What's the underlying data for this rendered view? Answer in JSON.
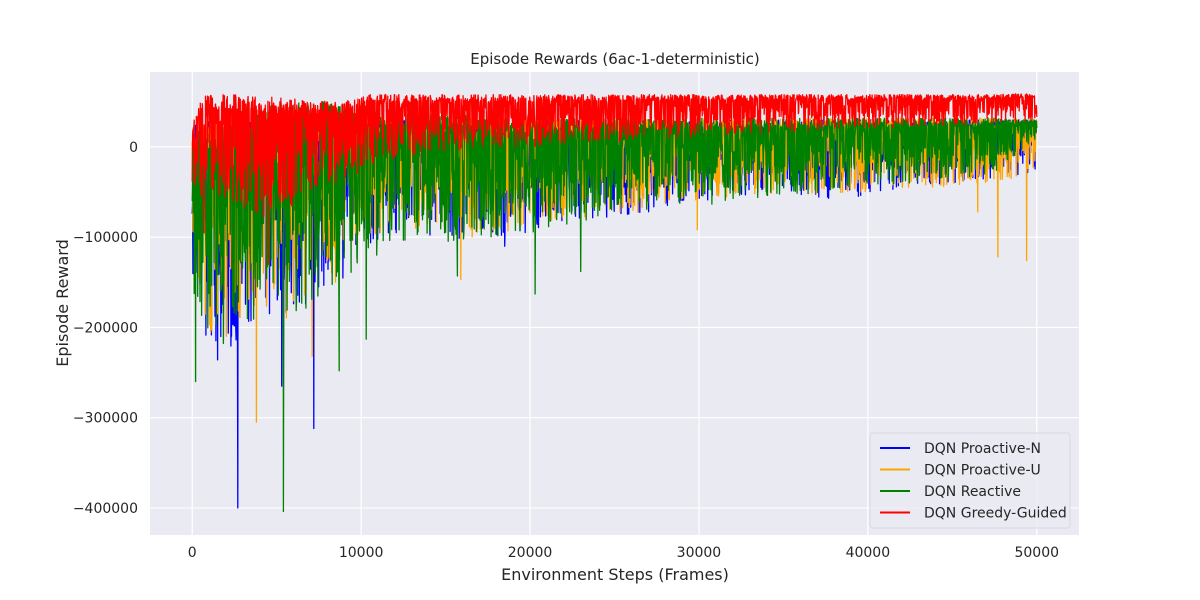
{
  "chart_data": {
    "type": "line",
    "title": "Episode Rewards (6ac-1-deterministic)",
    "xlabel": "Environment Steps (Frames)",
    "ylabel": "Episode Reward",
    "xlim": [
      -2500,
      52500
    ],
    "ylim": [
      -430000,
      83000
    ],
    "x_ticks": [
      0,
      10000,
      20000,
      30000,
      40000,
      50000
    ],
    "y_ticks": [
      0,
      -100000,
      -200000,
      -300000,
      -400000
    ],
    "x_tick_labels": [
      "0",
      "10000",
      "20000",
      "30000",
      "40000",
      "50000"
    ],
    "y_tick_labels": [
      "0",
      "−100000",
      "−200000",
      "−300000",
      "−400000"
    ],
    "grid": true,
    "legend_position": "lower-right",
    "series": [
      {
        "name": "DQN Proactive-N",
        "color": "#0000ff",
        "envelope": {
          "x": [
            0,
            1000,
            2500,
            4000,
            5500,
            7000,
            8500,
            10000,
            12500,
            15000,
            17500,
            20000,
            22500,
            25000,
            27500,
            30000,
            32500,
            35000,
            37500,
            40000,
            42500,
            45000,
            47500,
            50000
          ],
          "upper": [
            25000,
            30000,
            32000,
            32000,
            32000,
            33000,
            33000,
            30000,
            30000,
            30000,
            30000,
            30000,
            30000,
            30000,
            30000,
            30000,
            30000,
            30000,
            30000,
            30000,
            30000,
            30000,
            30000,
            30000
          ],
          "lower": [
            -160000,
            -230000,
            -220000,
            -190000,
            -200000,
            -170000,
            -160000,
            -110000,
            -95000,
            -100000,
            -105000,
            -95000,
            -85000,
            -80000,
            -70000,
            -60000,
            -55000,
            -50000,
            -60000,
            -55000,
            -45000,
            -40000,
            -35000,
            -30000
          ]
        },
        "spikes": [
          [
            2700,
            -400000
          ],
          [
            5300,
            -265000
          ],
          [
            7200,
            -312000
          ],
          [
            1500,
            -236000
          ],
          [
            11100,
            -95000
          ],
          [
            18500,
            -110000
          ]
        ]
      },
      {
        "name": "DQN Proactive-U",
        "color": "#ffa500",
        "envelope": {
          "x": [
            0,
            1000,
            2500,
            4000,
            5500,
            7000,
            8500,
            10000,
            12500,
            15000,
            17500,
            20000,
            22500,
            25000,
            27500,
            30000,
            32500,
            35000,
            37500,
            40000,
            42500,
            45000,
            47500,
            50000
          ],
          "upper": [
            28000,
            33000,
            35000,
            35000,
            35000,
            35000,
            35000,
            33000,
            32000,
            32000,
            32000,
            32000,
            32000,
            32000,
            32000,
            32000,
            32000,
            32000,
            32000,
            32000,
            32000,
            32000,
            32000,
            32000
          ],
          "lower": [
            -150000,
            -215000,
            -210000,
            -180000,
            -195000,
            -160000,
            -150000,
            -105000,
            -90000,
            -100000,
            -100000,
            -90000,
            -80000,
            -75000,
            -70000,
            -60000,
            -55000,
            -50000,
            -55000,
            -50000,
            -45000,
            -45000,
            -40000,
            -35000
          ]
        },
        "spikes": [
          [
            3800,
            -305000
          ],
          [
            7100,
            -232000
          ],
          [
            15900,
            -147000
          ],
          [
            29900,
            -92000
          ],
          [
            47700,
            -122000
          ],
          [
            49400,
            -126000
          ],
          [
            46500,
            -72000
          ]
        ]
      },
      {
        "name": "DQN Reactive",
        "color": "#008000",
        "envelope": {
          "x": [
            0,
            1000,
            2500,
            4000,
            5500,
            7000,
            8500,
            10000,
            12500,
            15000,
            17500,
            20000,
            22500,
            25000,
            27500,
            30000,
            32500,
            35000,
            37500,
            40000,
            42500,
            45000,
            47500,
            50000
          ],
          "upper": [
            22000,
            28000,
            35000,
            42000,
            50000,
            52000,
            48000,
            42000,
            38000,
            36000,
            34000,
            33000,
            32000,
            32000,
            32000,
            32000,
            32000,
            32000,
            32000,
            32000,
            32000,
            32000,
            32000,
            30000
          ],
          "lower": [
            -180000,
            -230000,
            -215000,
            -185000,
            -200000,
            -175000,
            -160000,
            -130000,
            -110000,
            -105000,
            -100000,
            -95000,
            -85000,
            -75000,
            -70000,
            -65000,
            -60000,
            -55000,
            -50000,
            -45000,
            -40000,
            -35000,
            -30000,
            10000
          ]
        },
        "spikes": [
          [
            200,
            -260000
          ],
          [
            5400,
            -404000
          ],
          [
            8700,
            -248000
          ],
          [
            10300,
            -213000
          ],
          [
            20300,
            -163000
          ],
          [
            23000,
            -138000
          ],
          [
            15700,
            -143000
          ]
        ]
      },
      {
        "name": "DQN Greedy-Guided",
        "color": "#ff0000",
        "envelope": {
          "x": [
            0,
            500,
            1000,
            2500,
            4000,
            5500,
            7000,
            8500,
            10000,
            10500,
            12500,
            15000,
            17500,
            20000,
            22500,
            25000,
            27500,
            30000,
            32500,
            35000,
            37500,
            40000,
            42500,
            45000,
            47500,
            50000
          ],
          "upper": [
            25000,
            55000,
            58000,
            58000,
            55000,
            55000,
            52000,
            50000,
            55000,
            58000,
            58000,
            58000,
            58000,
            58000,
            58000,
            58000,
            58000,
            58000,
            58000,
            58000,
            58000,
            58000,
            58000,
            58000,
            58000,
            60000
          ],
          "lower": [
            -40000,
            -55000,
            -60000,
            -60000,
            -80000,
            -75000,
            -50000,
            -40000,
            -30000,
            -20000,
            -10000,
            -5000,
            0,
            0,
            5000,
            5000,
            10000,
            10000,
            15000,
            15000,
            20000,
            20000,
            22000,
            24000,
            26000,
            28000
          ]
        },
        "spikes": [
          [
            700,
            -95000
          ],
          [
            4500,
            -130000
          ]
        ]
      }
    ]
  }
}
